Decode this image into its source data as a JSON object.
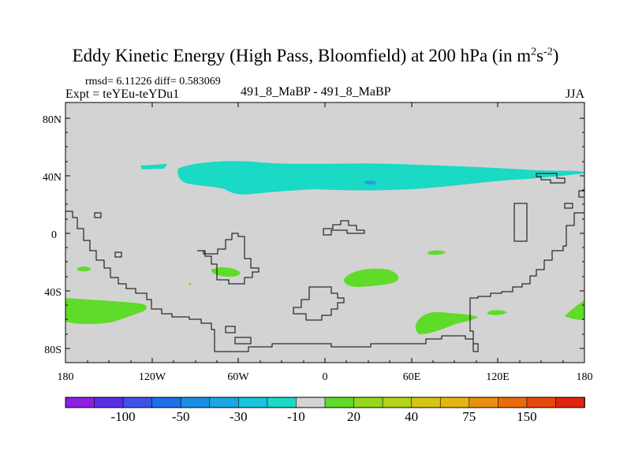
{
  "title": {
    "main": "Eddy Kinetic Energy (High Pass, Bloomfield) at 200 hPa (in m",
    "sup1": "2",
    "mid": "s",
    "sup2": "-2",
    "end": ")"
  },
  "stats": {
    "text": "rmsd= 6.11226 diff= 0.583069"
  },
  "experiment": {
    "text": "Expt = teYEu-teYDu1"
  },
  "comparison": {
    "text": "491_8_MaBP - 491_8_MaBP"
  },
  "season": {
    "text": "JJA"
  },
  "map": {
    "background_color": "#d3d3d3",
    "lat_ticks": [
      "80N",
      "40N",
      "0",
      "40S",
      "80S"
    ],
    "lon_ticks": [
      "180",
      "120W",
      "60W",
      "0",
      "60E",
      "120E",
      "180"
    ]
  },
  "colorbar": {
    "labels": [
      "-100",
      "-50",
      "-30",
      "-10",
      "20",
      "40",
      "75",
      "150"
    ],
    "colors": [
      "#8d1fe0",
      "#5a2fe6",
      "#3f52e8",
      "#1f6fe8",
      "#1a8fe6",
      "#1aa7e3",
      "#1ac3dc",
      "#1ad9c5",
      "#d3d3d3",
      "#5fdb2a",
      "#95d91c",
      "#b3d417",
      "#d6c512",
      "#e8b40f",
      "#ea8f0d",
      "#e86b0c",
      "#e6480c",
      "#e0250d"
    ]
  }
}
